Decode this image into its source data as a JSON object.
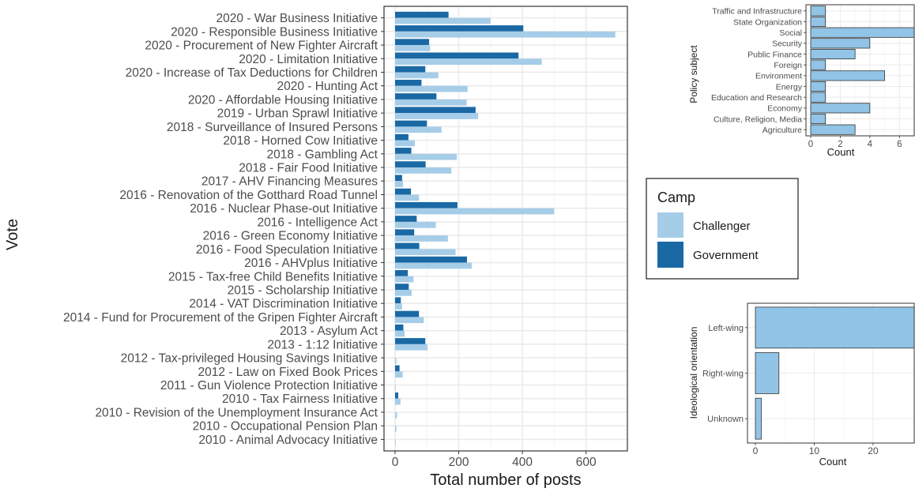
{
  "chart_data": [
    {
      "type": "bar",
      "orientation": "horizontal",
      "title": "",
      "xlabel": "Total number of posts",
      "ylabel": "Vote",
      "xlim": [
        0,
        730
      ],
      "xticks": [
        0,
        200,
        400,
        600
      ],
      "grid": true,
      "legend_position": "right",
      "categories": [
        "2020 - War Business Initiative",
        "2020 - Responsible Business Initiative",
        "2020 - Procurement of New Fighter Aircraft",
        "2020 - Limitation Initiative",
        "2020 - Increase of Tax Deductions for Children",
        "2020 - Hunting Act",
        "2020 - Affordable Housing Initiative",
        "2019 - Urban Sprawl Initiative",
        "2018 - Surveillance of Insured Persons",
        "2018 - Horned Cow Initiative",
        "2018 - Gambling Act",
        "2018 - Fair Food Initiative",
        "2017 - AHV Financing Measures",
        "2016 - Renovation of the Gotthard Road Tunnel",
        "2016 - Nuclear Phase-out Initiative",
        "2016 - Intelligence Act",
        "2016 - Green Economy Initiative",
        "2016 - Food Speculation Initiative",
        "2016 - AHVplus Initiative",
        "2015 - Tax-free Child Benefits Initiative",
        "2015 - Scholarship Initiative",
        "2014 - VAT Discrimination Initiative",
        "2014 - Fund for Procurement of the Gripen Fighter Aircraft",
        "2013 - Asylum Act",
        "2013 - 1:12 Initiative",
        "2012 - Tax-privileged Housing Savings Initiative",
        "2012 - Law on Fixed Book Prices",
        "2011 - Gun Violence Protection Initiative",
        "2010 - Tax Fairness Initiative",
        "2010 - Revision of the Unemployment Insurance Act",
        "2010 - Occupational Pension Plan",
        "2010 - Animal Advocacy Initiative"
      ],
      "series": [
        {
          "name": "Government",
          "color": "#1a69a5",
          "values": [
            168,
            403,
            107,
            388,
            95,
            83,
            130,
            253,
            100,
            42,
            51,
            96,
            22,
            50,
            196,
            68,
            60,
            76,
            226,
            40,
            43,
            18,
            75,
            26,
            95,
            0,
            14,
            0,
            10,
            0,
            0,
            0
          ]
        },
        {
          "name": "Challenger",
          "color": "#a6cde8",
          "values": [
            300,
            692,
            110,
            461,
            136,
            228,
            225,
            261,
            146,
            62,
            194,
            177,
            25,
            75,
            500,
            128,
            166,
            190,
            241,
            58,
            52,
            22,
            90,
            30,
            102,
            4,
            24,
            2,
            17,
            6,
            4,
            2
          ]
        }
      ],
      "legend": {
        "title": "Camp",
        "items": [
          "Challenger",
          "Government"
        ]
      }
    },
    {
      "type": "bar",
      "orientation": "horizontal",
      "title": "",
      "xlabel": "Count",
      "ylabel": "Policy subject",
      "xlim": [
        0,
        7
      ],
      "xticks": [
        0,
        2,
        4,
        6
      ],
      "grid": true,
      "bar_color": "#91c4e6",
      "categories": [
        "Traffic and Infrastructure",
        "State Organization",
        "Social",
        "Security",
        "Public Finance",
        "Foreign",
        "Environment",
        "Energy",
        "Education and Research",
        "Economy",
        "Culture, Religion, Media",
        "Agriculture"
      ],
      "values": [
        1,
        1,
        7,
        4,
        3,
        1,
        5,
        1,
        1,
        4,
        1,
        3
      ]
    },
    {
      "type": "bar",
      "orientation": "horizontal",
      "title": "",
      "xlabel": "Count",
      "ylabel": "Ideological orientation",
      "xlim": [
        0,
        27
      ],
      "xticks": [
        0,
        10,
        20
      ],
      "grid": true,
      "bar_color": "#91c4e6",
      "categories": [
        "Left-wing",
        "Right-wing",
        "Unknown"
      ],
      "values": [
        27,
        4,
        1
      ]
    }
  ]
}
